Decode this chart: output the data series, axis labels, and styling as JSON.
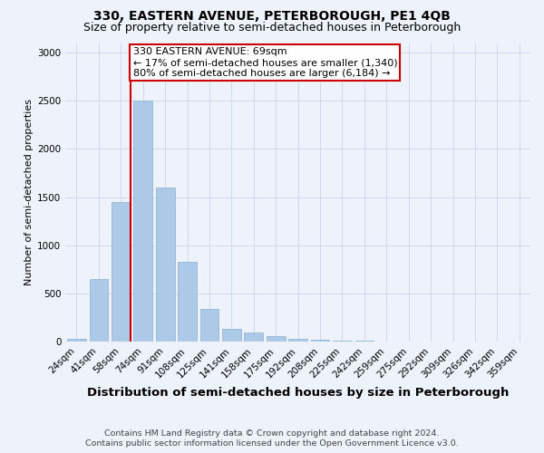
{
  "title": "330, EASTERN AVENUE, PETERBOROUGH, PE1 4QB",
  "subtitle": "Size of property relative to semi-detached houses in Peterborough",
  "xlabel": "Distribution of semi-detached houses by size in Peterborough",
  "ylabel": "Number of semi-detached properties",
  "categories": [
    "24sqm",
    "41sqm",
    "58sqm",
    "74sqm",
    "91sqm",
    "108sqm",
    "125sqm",
    "141sqm",
    "158sqm",
    "175sqm",
    "192sqm",
    "208sqm",
    "225sqm",
    "242sqm",
    "259sqm",
    "275sqm",
    "292sqm",
    "309sqm",
    "326sqm",
    "342sqm",
    "359sqm"
  ],
  "values": [
    30,
    650,
    1450,
    2500,
    1600,
    830,
    340,
    130,
    90,
    55,
    30,
    15,
    8,
    5,
    3,
    2,
    2,
    1,
    1,
    0,
    0
  ],
  "bar_color": "#adc9e8",
  "bar_edge_color": "#8ab0d0",
  "annotation_text": "330 EASTERN AVENUE: 69sqm\n← 17% of semi-detached houses are smaller (1,340)\n80% of semi-detached houses are larger (6,184) →",
  "annotation_box_color": "#ffffff",
  "annotation_box_edge_color": "#cc0000",
  "vertical_line_color": "#cc0000",
  "ylim": [
    0,
    3100
  ],
  "yticks": [
    0,
    500,
    1000,
    1500,
    2000,
    2500,
    3000
  ],
  "footer_line1": "Contains HM Land Registry data © Crown copyright and database right 2024.",
  "footer_line2": "Contains public sector information licensed under the Open Government Licence v3.0.",
  "bg_color": "#eef2fb",
  "grid_color": "#d0d8ee",
  "title_fontsize": 10,
  "subtitle_fontsize": 9,
  "xlabel_fontsize": 9.5,
  "ylabel_fontsize": 8,
  "tick_fontsize": 7.5,
  "annotation_fontsize": 8,
  "footer_fontsize": 6.8,
  "line_x_index": 2.0
}
